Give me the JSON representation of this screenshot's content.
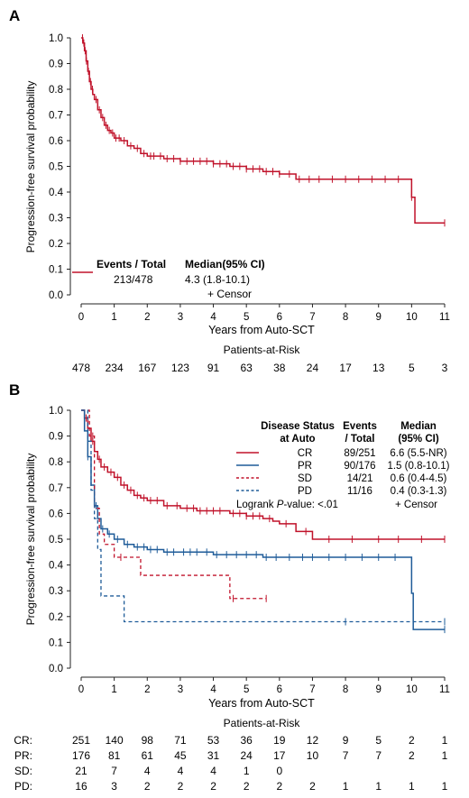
{
  "colors": {
    "red": "#c0122a",
    "blue": "#1f5c99",
    "axis": "#222222"
  },
  "panel_a": {
    "letter": "A",
    "legend": {
      "header_events": "Events / Total",
      "header_median": "Median(95% CI)",
      "events": "213/478",
      "median": "4.3 (1.8-10.1)",
      "censor": "+ Censor"
    },
    "risk": {
      "title": "Patients-at-Risk",
      "values": [
        "478",
        "234",
        "167",
        "123",
        "91",
        "63",
        "38",
        "24",
        "17",
        "13",
        "5",
        "3"
      ]
    }
  },
  "panel_b": {
    "letter": "B",
    "legend": {
      "h_status_1": "Disease Status",
      "h_status_2": "at Auto",
      "h_events_1": "Events",
      "h_events_2": "/ Total",
      "h_median_1": "Median",
      "h_median_2": "(95% CI)",
      "rows": [
        {
          "label": "CR",
          "events": "89/251",
          "median": "6.6 (5.5-NR)"
        },
        {
          "label": "PR",
          "events": "90/176",
          "median": "1.5 (0.8-10.1)"
        },
        {
          "label": "SD",
          "events": "14/21",
          "median": "0.6 (0.4-4.5)"
        },
        {
          "label": "PD",
          "events": "11/16",
          "median": "0.4 (0.3-1.3)"
        }
      ],
      "logrank_pre": "Logrank ",
      "logrank_p": "P",
      "logrank_post": "-value: <.01",
      "censor": "+ Censor"
    },
    "risk": {
      "title": "Patients-at-Risk",
      "rows": [
        {
          "label": "CR:",
          "values": [
            "251",
            "140",
            "98",
            "71",
            "53",
            "36",
            "19",
            "12",
            "9",
            "5",
            "2",
            "1"
          ]
        },
        {
          "label": "PR:",
          "values": [
            "176",
            "81",
            "61",
            "45",
            "31",
            "24",
            "17",
            "10",
            "7",
            "7",
            "2",
            "1"
          ]
        },
        {
          "label": "SD:",
          "values": [
            "21",
            "7",
            "4",
            "4",
            "4",
            "1",
            "0",
            "",
            "",
            "",
            "",
            ""
          ]
        },
        {
          "label": "PD:",
          "values": [
            "16",
            "3",
            "2",
            "2",
            "2",
            "2",
            "2",
            "2",
            "1",
            "1",
            "1",
            "1"
          ]
        }
      ]
    }
  },
  "chart_data": [
    {
      "type": "line",
      "subtype": "kaplan-meier step",
      "xlabel": "Years from Auto-SCT",
      "ylabel": "Progression-free survival probability",
      "xlim": [
        0,
        11
      ],
      "ylim": [
        0,
        1
      ],
      "xticks": [
        "0",
        "1",
        "2",
        "3",
        "4",
        "5",
        "6",
        "7",
        "8",
        "9",
        "10",
        "11"
      ],
      "yticks": [
        "0.0",
        "0.1",
        "0.2",
        "0.3",
        "0.4",
        "0.5",
        "0.6",
        "0.7",
        "0.8",
        "0.9",
        "1.0"
      ],
      "series": [
        {
          "x": [
            0,
            0.05,
            0.1,
            0.15,
            0.2,
            0.25,
            0.3,
            0.35,
            0.4,
            0.5,
            0.6,
            0.7,
            0.8,
            0.9,
            1.0,
            1.2,
            1.4,
            1.6,
            1.8,
            2.0,
            2.5,
            3.0,
            3.5,
            4.0,
            4.5,
            5.0,
            5.5,
            6.0,
            6.5,
            7.0,
            9.9,
            10.0,
            10.1,
            11.0
          ],
          "y": [
            1.0,
            0.98,
            0.95,
            0.91,
            0.87,
            0.83,
            0.8,
            0.78,
            0.76,
            0.72,
            0.69,
            0.66,
            0.64,
            0.63,
            0.61,
            0.6,
            0.58,
            0.57,
            0.55,
            0.54,
            0.53,
            0.52,
            0.52,
            0.51,
            0.5,
            0.49,
            0.48,
            0.47,
            0.45,
            0.45,
            0.45,
            0.38,
            0.28,
            0.28
          ],
          "censor_x": [
            0.04,
            0.08,
            0.12,
            0.16,
            0.22,
            0.28,
            0.34,
            0.45,
            0.55,
            0.65,
            0.75,
            0.85,
            0.95,
            1.05,
            1.15,
            1.3,
            1.5,
            1.7,
            1.9,
            2.1,
            2.2,
            2.4,
            2.6,
            2.8,
            3.0,
            3.2,
            3.4,
            3.6,
            3.8,
            4.0,
            4.2,
            4.4,
            4.6,
            4.8,
            5.0,
            5.2,
            5.4,
            5.6,
            5.8,
            6.0,
            6.3,
            6.6,
            6.9,
            7.2,
            7.6,
            8.0,
            8.4,
            8.8,
            9.2,
            9.6,
            10.0,
            11.0
          ]
        }
      ]
    },
    {
      "type": "line",
      "subtype": "kaplan-meier step",
      "xlabel": "Years from Auto-SCT",
      "ylabel": "Progression-free survival probability",
      "xlim": [
        0,
        11
      ],
      "ylim": [
        0,
        1
      ],
      "xticks": [
        "0",
        "1",
        "2",
        "3",
        "4",
        "5",
        "6",
        "7",
        "8",
        "9",
        "10",
        "11"
      ],
      "yticks": [
        "0.0",
        "0.1",
        "0.2",
        "0.3",
        "0.4",
        "0.5",
        "0.6",
        "0.7",
        "0.8",
        "0.9",
        "1.0"
      ],
      "series": [
        {
          "name": "CR",
          "style": "solid",
          "color": "#c0122a",
          "x": [
            0,
            0.1,
            0.2,
            0.3,
            0.4,
            0.5,
            0.6,
            0.8,
            1.0,
            1.2,
            1.4,
            1.6,
            1.8,
            2.0,
            2.5,
            3.0,
            3.5,
            4.0,
            4.5,
            5.0,
            5.5,
            5.8,
            6.0,
            6.5,
            7.0,
            11.0
          ],
          "y": [
            1.0,
            0.97,
            0.93,
            0.88,
            0.84,
            0.81,
            0.78,
            0.76,
            0.74,
            0.71,
            0.69,
            0.67,
            0.66,
            0.65,
            0.63,
            0.62,
            0.61,
            0.61,
            0.6,
            0.59,
            0.58,
            0.57,
            0.56,
            0.53,
            0.5,
            0.5
          ],
          "censor_x": [
            0.15,
            0.35,
            0.55,
            0.7,
            0.9,
            1.1,
            1.3,
            1.5,
            1.7,
            1.9,
            2.1,
            2.3,
            2.6,
            2.9,
            3.2,
            3.4,
            3.6,
            3.8,
            4.0,
            4.2,
            4.6,
            4.8,
            5.0,
            5.2,
            5.4,
            5.7,
            6.2,
            6.8,
            7.5,
            8.2,
            9.0,
            9.6,
            10.3,
            11.0
          ]
        },
        {
          "name": "PR",
          "style": "solid",
          "color": "#1f5c99",
          "x": [
            0,
            0.1,
            0.2,
            0.3,
            0.4,
            0.5,
            0.6,
            0.8,
            1.0,
            1.3,
            1.6,
            2.0,
            2.5,
            3.0,
            4.0,
            5.0,
            5.5,
            6.0,
            9.9,
            10.0,
            10.05,
            11.0
          ],
          "y": [
            1.0,
            0.92,
            0.82,
            0.71,
            0.63,
            0.58,
            0.54,
            0.52,
            0.5,
            0.48,
            0.47,
            0.46,
            0.45,
            0.45,
            0.44,
            0.44,
            0.43,
            0.43,
            0.43,
            0.29,
            0.15,
            0.15
          ],
          "censor_x": [
            0.2,
            0.45,
            0.65,
            0.85,
            1.1,
            1.4,
            1.7,
            1.9,
            2.1,
            2.3,
            2.6,
            2.8,
            3.1,
            3.3,
            3.5,
            3.8,
            4.1,
            4.4,
            4.7,
            5.0,
            5.3,
            5.6,
            5.9,
            6.3,
            6.7,
            7.0,
            7.5,
            8.0,
            8.5,
            9.0,
            9.5,
            11.0
          ]
        },
        {
          "name": "SD",
          "style": "dashed",
          "color": "#c0122a",
          "x": [
            0,
            0.25,
            0.4,
            0.55,
            0.7,
            1.0,
            1.8,
            2.5,
            4.5,
            5.6
          ],
          "y": [
            1.0,
            0.9,
            0.62,
            0.52,
            0.48,
            0.43,
            0.36,
            0.36,
            0.27,
            0.27
          ],
          "censor_x": [
            0.35,
            1.2,
            4.6,
            5.6
          ]
        },
        {
          "name": "PD",
          "style": "dashed",
          "color": "#1f5c99",
          "x": [
            0,
            0.2,
            0.3,
            0.4,
            0.5,
            0.6,
            1.3,
            11.0
          ],
          "y": [
            1.0,
            0.88,
            0.69,
            0.58,
            0.46,
            0.28,
            0.18,
            0.18
          ],
          "censor_x": [
            8.0,
            11.0
          ]
        }
      ]
    }
  ]
}
